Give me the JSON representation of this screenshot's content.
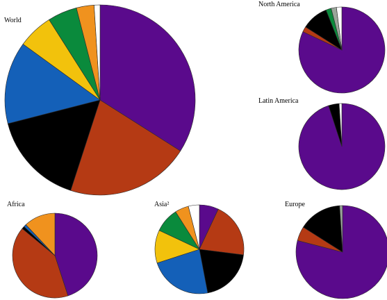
{
  "colors": {
    "purple": "#5a0a8c",
    "rust": "#b53a14",
    "black": "#000000",
    "blue": "#1460b8",
    "yellow": "#f2c20c",
    "green": "#0a8a3c",
    "orange": "#f0921e",
    "white": "#ffffff",
    "gray": "#9aa59a"
  },
  "chart_data": [
    {
      "type": "pie",
      "title": "World",
      "slices": [
        {
          "color": "purple",
          "value": 34
        },
        {
          "color": "rust",
          "value": 21
        },
        {
          "color": "black",
          "value": 16
        },
        {
          "color": "blue",
          "value": 14
        },
        {
          "color": "yellow",
          "value": 6
        },
        {
          "color": "green",
          "value": 5
        },
        {
          "color": "orange",
          "value": 3
        },
        {
          "color": "white",
          "value": 1
        }
      ]
    },
    {
      "type": "pie",
      "title": "North America",
      "slices": [
        {
          "color": "purple",
          "value": 82
        },
        {
          "color": "rust",
          "value": 2
        },
        {
          "color": "black",
          "value": 10
        },
        {
          "color": "green",
          "value": 2
        },
        {
          "color": "gray",
          "value": 2
        },
        {
          "color": "white",
          "value": 2
        }
      ]
    },
    {
      "type": "pie",
      "title": "Latin America",
      "slices": [
        {
          "color": "purple",
          "value": 95
        },
        {
          "color": "black",
          "value": 4
        },
        {
          "color": "white",
          "value": 1
        }
      ]
    },
    {
      "type": "pie",
      "title": "Africa",
      "slices": [
        {
          "color": "purple",
          "value": 45
        },
        {
          "color": "rust",
          "value": 41
        },
        {
          "color": "black",
          "value": 1
        },
        {
          "color": "blue",
          "value": 1
        },
        {
          "color": "orange",
          "value": 12
        }
      ]
    },
    {
      "type": "pie",
      "title": "Asia²",
      "slices": [
        {
          "color": "purple",
          "value": 7
        },
        {
          "color": "rust",
          "value": 20
        },
        {
          "color": "black",
          "value": 20
        },
        {
          "color": "blue",
          "value": 23
        },
        {
          "color": "yellow",
          "value": 12
        },
        {
          "color": "green",
          "value": 9
        },
        {
          "color": "orange",
          "value": 5
        },
        {
          "color": "white",
          "value": 4
        }
      ]
    },
    {
      "type": "pie",
      "title": "Europe",
      "slices": [
        {
          "color": "purple",
          "value": 79
        },
        {
          "color": "rust",
          "value": 5
        },
        {
          "color": "black",
          "value": 15
        },
        {
          "color": "gray",
          "value": 1
        }
      ]
    }
  ]
}
